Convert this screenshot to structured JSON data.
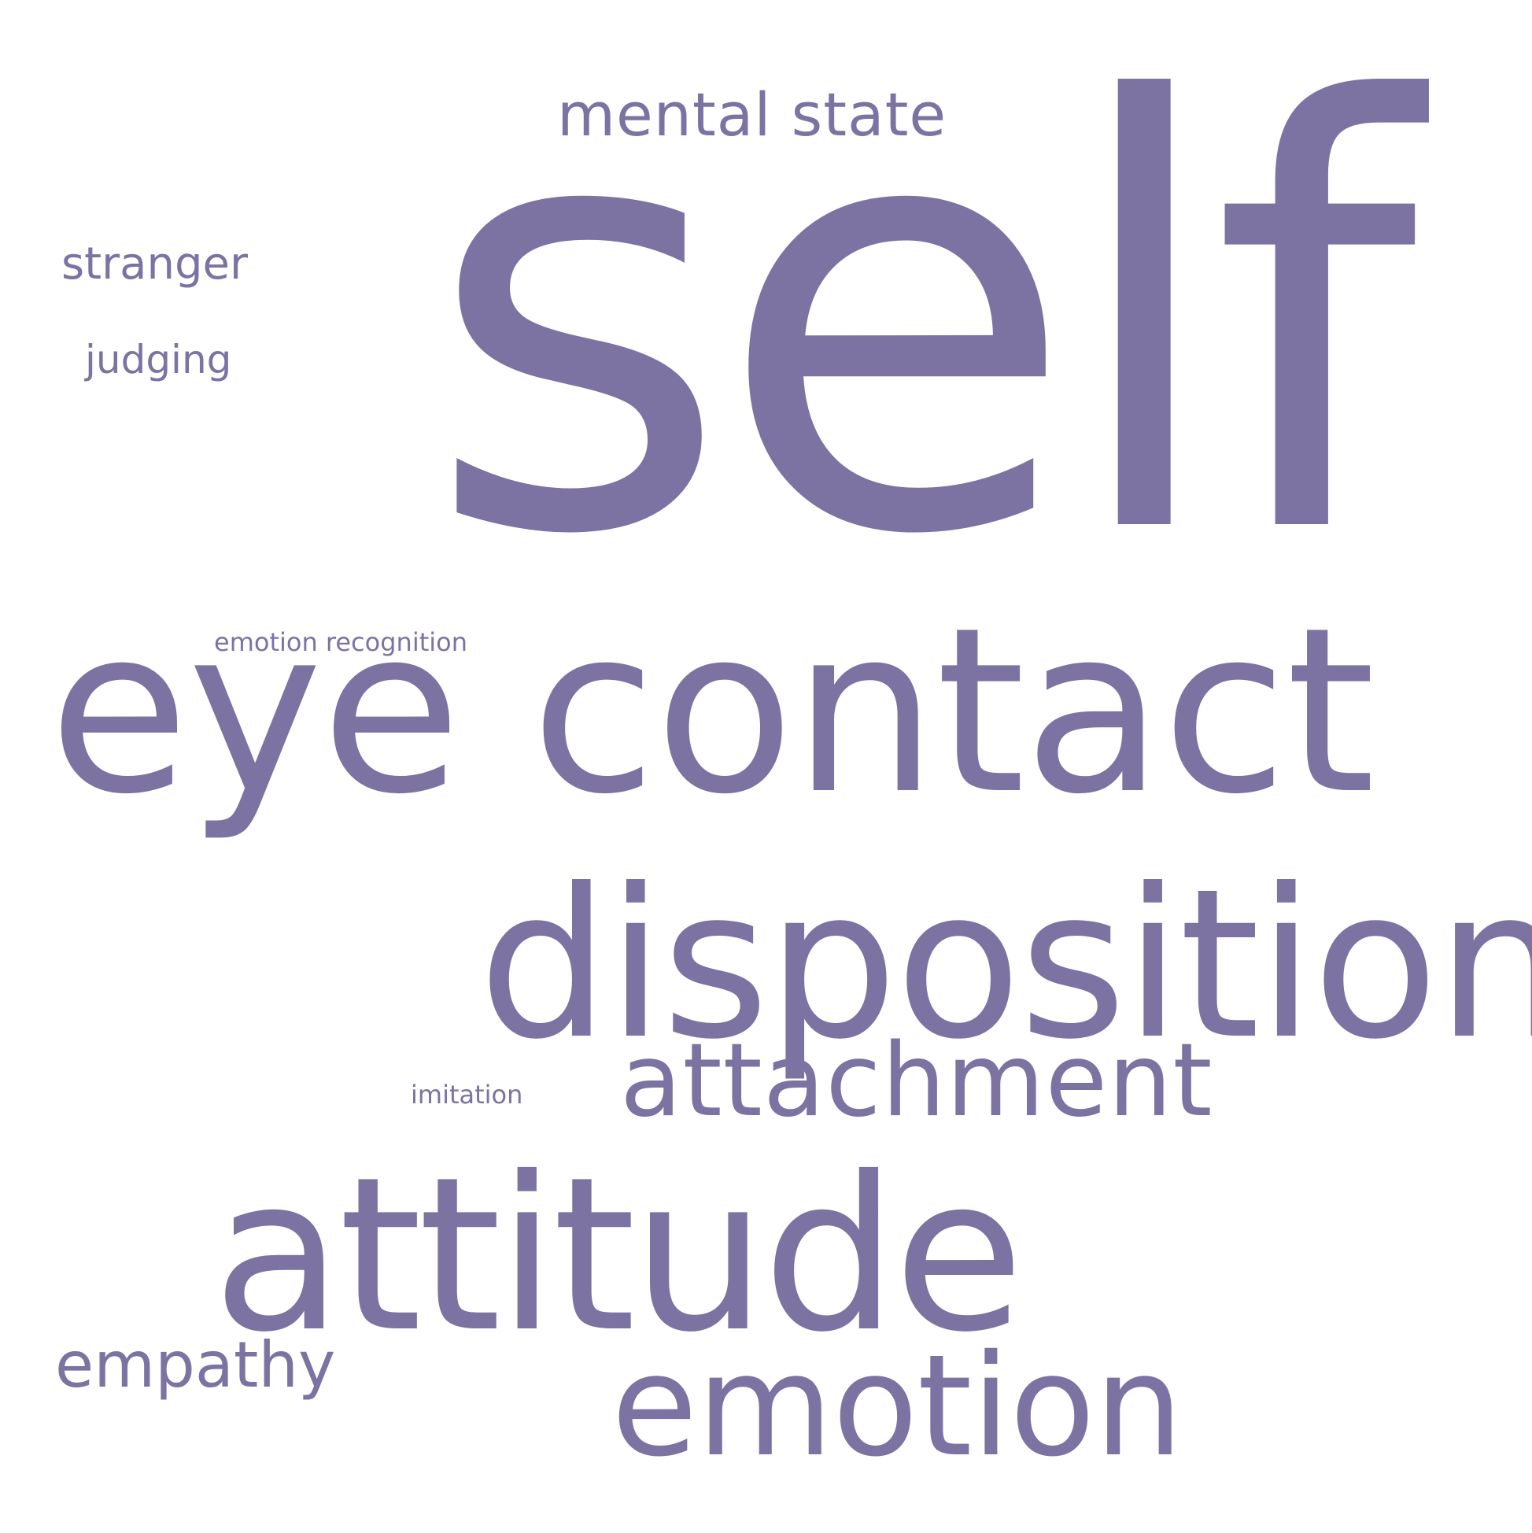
{
  "word_cloud": {
    "color": "#7c73a3",
    "words": [
      "self",
      "eye contact",
      "disposition",
      "attitude",
      "emotion",
      "attachment",
      "mental state",
      "empathy",
      "stranger",
      "judging",
      "emotion recognition",
      "imitation"
    ]
  }
}
